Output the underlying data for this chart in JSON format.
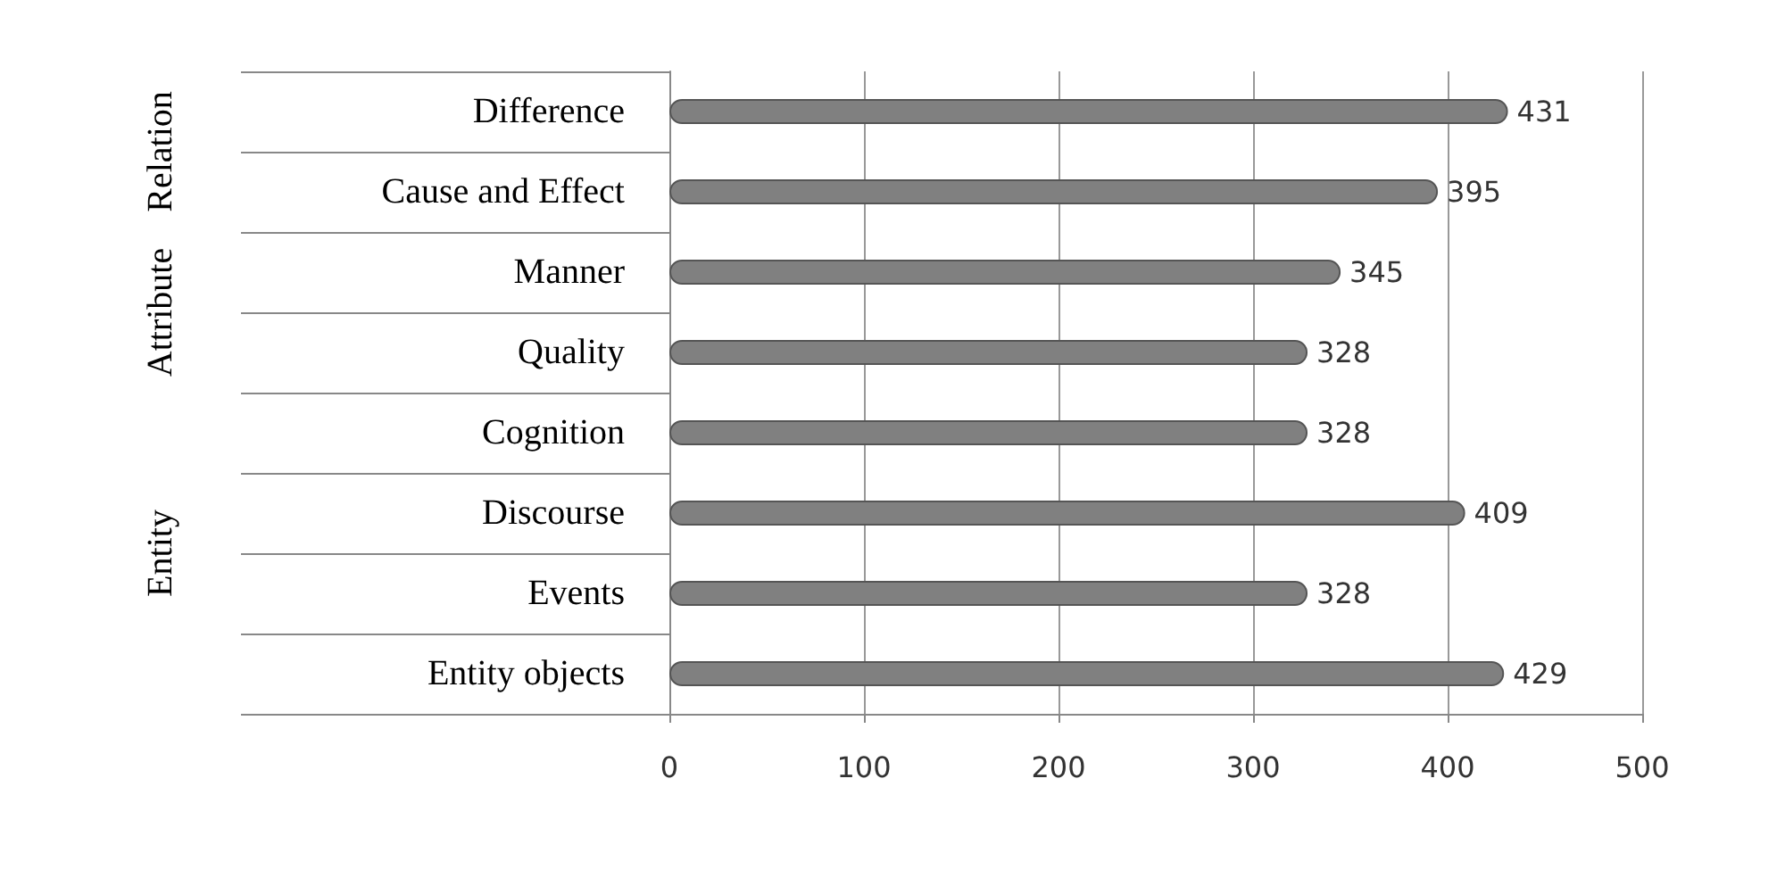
{
  "chart_data": {
    "type": "bar",
    "orientation": "horizontal",
    "categories": [
      "Difference",
      "Cause and Effect",
      "Manner",
      "Quality",
      "Cognition",
      "Discourse",
      "Events",
      "Entity objects"
    ],
    "values": [
      431,
      395,
      345,
      328,
      328,
      409,
      328,
      429
    ],
    "color": "#808080",
    "data_labels": true,
    "xlim": [
      0,
      500
    ],
    "xticks": [
      0,
      100,
      200,
      300,
      400,
      500
    ],
    "grid": "x",
    "annotations": [
      "Relation",
      "Attribute",
      "Entity"
    ]
  }
}
